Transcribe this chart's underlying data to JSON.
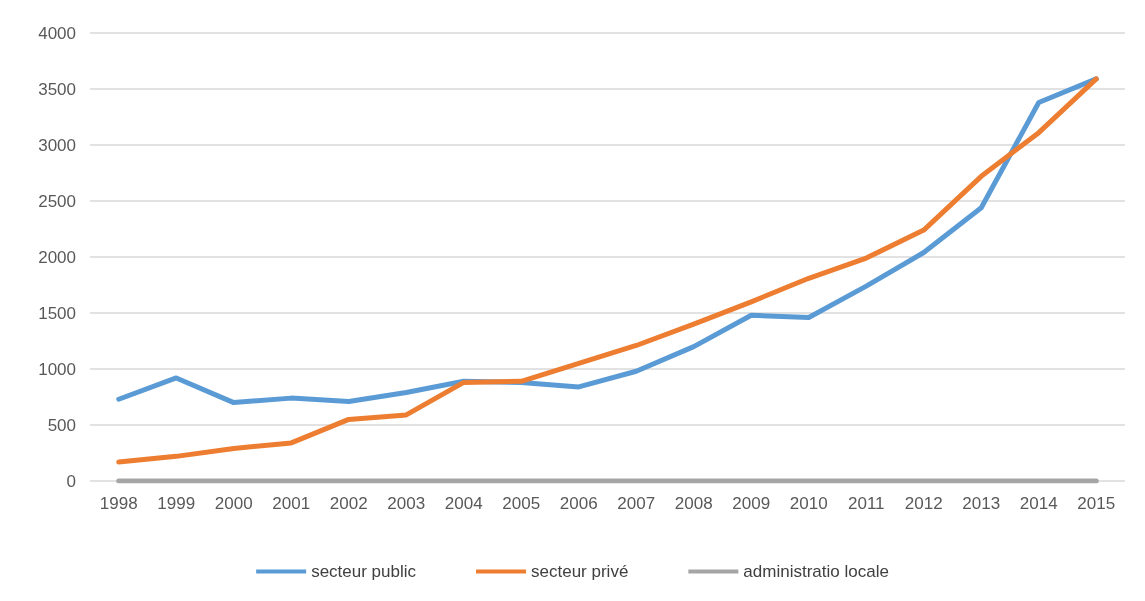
{
  "chart_data": {
    "type": "line",
    "categories": [
      "1998",
      "1999",
      "2000",
      "2001",
      "2002",
      "2003",
      "2004",
      "2005",
      "2006",
      "2007",
      "2008",
      "2009",
      "2010",
      "2011",
      "2012",
      "2013",
      "2014",
      "2015"
    ],
    "series": [
      {
        "name": "secteur public",
        "color": "#5b9bd5",
        "values": [
          730,
          920,
          700,
          740,
          710,
          790,
          890,
          880,
          840,
          980,
          1200,
          1480,
          1460,
          1740,
          2040,
          2440,
          3380,
          3590
        ]
      },
      {
        "name": "secteur privé",
        "color": "#ed7d31",
        "values": [
          170,
          220,
          290,
          340,
          550,
          590,
          880,
          890,
          1050,
          1210,
          1400,
          1600,
          1810,
          1990,
          2240,
          2720,
          3110,
          3590
        ]
      },
      {
        "name": "administratio locale",
        "color": "#a5a5a5",
        "values": [
          0,
          0,
          0,
          0,
          0,
          0,
          0,
          0,
          0,
          0,
          0,
          0,
          0,
          0,
          0,
          0,
          0,
          0
        ]
      }
    ],
    "ylim": [
      0,
      4000
    ],
    "yticks": [
      0,
      500,
      1000,
      1500,
      2000,
      2500,
      3000,
      3500,
      4000
    ],
    "grid": "y",
    "legend": "bottom",
    "marker": "none",
    "line_style": "solid"
  }
}
